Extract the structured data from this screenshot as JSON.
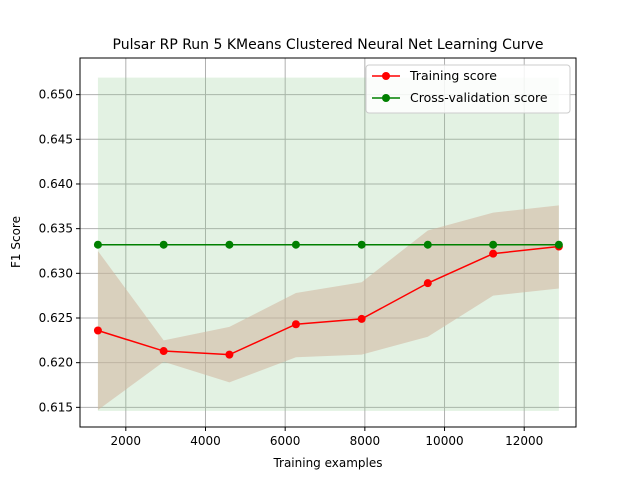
{
  "chart_data": {
    "type": "line",
    "title": "Pulsar RP Run 5 KMeans Clustered Neural Net Learning Curve",
    "xlabel": "Training examples",
    "ylabel": "F1 Score",
    "xlim": [
      850,
      13300
    ],
    "ylim": [
      0.6128,
      0.6541
    ],
    "xticks": [
      2000,
      4000,
      6000,
      8000,
      10000,
      12000
    ],
    "yticks": [
      0.615,
      0.62,
      0.625,
      0.63,
      0.635,
      0.64,
      0.645,
      0.65
    ],
    "xtick_labels": [
      "2000",
      "4000",
      "6000",
      "8000",
      "10000",
      "12000"
    ],
    "ytick_labels": [
      "0.615",
      "0.620",
      "0.625",
      "0.630",
      "0.635",
      "0.640",
      "0.645",
      "0.650"
    ],
    "grid": true,
    "legend_position": "top-right",
    "x": [
      1300,
      2950,
      4600,
      6270,
      7920,
      9580,
      11220,
      12870
    ],
    "series": [
      {
        "name": "Training score",
        "color": "#ff0000",
        "band_color": "#d2b59f",
        "values": [
          0.6236,
          0.6213,
          0.6209,
          0.6243,
          0.6249,
          0.6289,
          0.6322,
          0.633
        ],
        "band_upper": [
          0.6325,
          0.6225,
          0.624,
          0.6278,
          0.629,
          0.6348,
          0.6368,
          0.6376
        ],
        "band_lower": [
          0.6147,
          0.6201,
          0.6178,
          0.6206,
          0.6209,
          0.6229,
          0.6275,
          0.6283
        ]
      },
      {
        "name": "Cross-validation score",
        "color": "#008000",
        "band_color": "#8fcc8f",
        "values": [
          0.6332,
          0.6332,
          0.6332,
          0.6332,
          0.6332,
          0.6332,
          0.6332,
          0.6332
        ],
        "band_upper": [
          0.6519,
          0.6519,
          0.6519,
          0.6519,
          0.6519,
          0.6519,
          0.6519,
          0.6519
        ],
        "band_lower": [
          0.6146,
          0.6146,
          0.6146,
          0.6146,
          0.6146,
          0.6146,
          0.6146,
          0.6146
        ]
      }
    ]
  }
}
